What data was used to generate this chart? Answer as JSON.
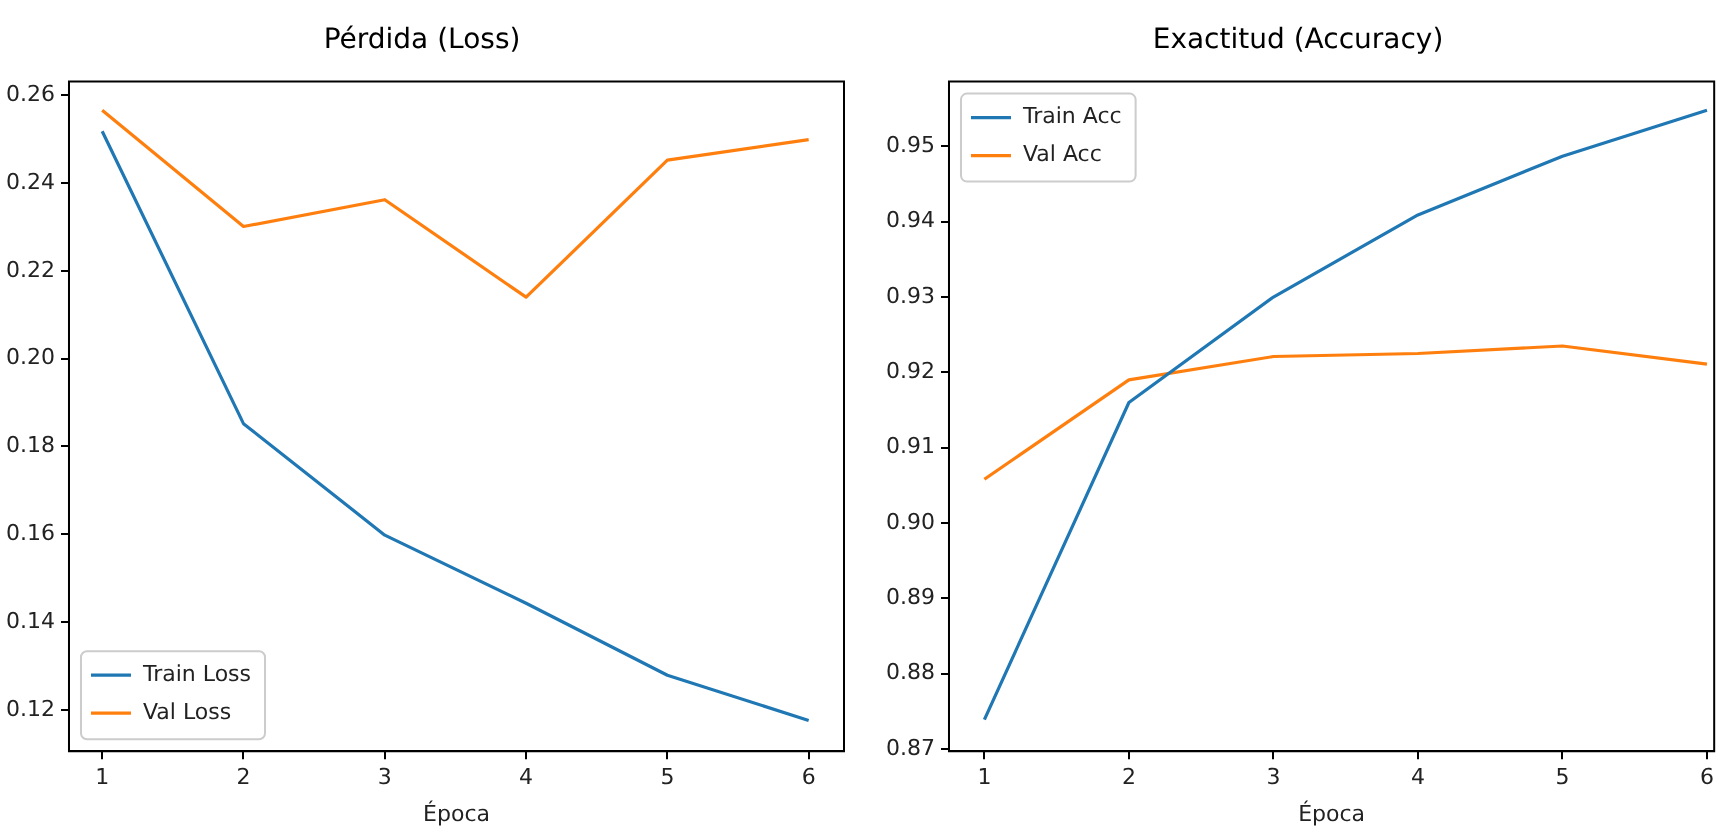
{
  "chart_data": [
    {
      "type": "line",
      "title": "Pérdida (Loss)",
      "xlabel": "Época",
      "x": [
        1,
        2,
        3,
        4,
        5,
        6
      ],
      "xlim": [
        0.765,
        6.25
      ],
      "xticks": [
        1,
        2,
        3,
        4,
        5,
        6
      ],
      "ylim": [
        0.1106,
        0.2631
      ],
      "yticks": [
        0.12,
        0.14,
        0.16,
        0.18,
        {
          "value": 0.2,
          "label": "0.20"
        },
        0.22,
        0.24,
        0.26
      ],
      "grid": false,
      "legend": "bottom left",
      "series": [
        {
          "name": "Train Loss",
          "color": "#1f77b4",
          "values": [
            0.2518,
            0.1852,
            0.1598,
            0.1443,
            0.1279,
            0.1176
          ]
        },
        {
          "name": "Val Loss",
          "color": "#ff7f0e",
          "values": [
            0.2566,
            0.2301,
            0.2362,
            0.214,
            0.2452,
            0.2499
          ]
        }
      ]
    },
    {
      "type": "line",
      "title": "Exactitud (Accuracy)",
      "xlabel": "Época",
      "x": [
        1,
        2,
        3,
        4,
        5,
        6
      ],
      "xlim": [
        0.755,
        6.05
      ],
      "xticks": [
        1,
        2,
        3,
        4,
        5,
        6
      ],
      "ylim": [
        0.8697,
        0.9586
      ],
      "yticks": [
        0.87,
        0.88,
        0.89,
        {
          "value": 0.9,
          "label": "0.90"
        },
        0.91,
        0.92,
        0.93,
        0.94,
        0.95
      ],
      "grid": false,
      "legend": "top left",
      "series": [
        {
          "name": "Train Acc",
          "color": "#1f77b4",
          "values": [
            0.8739,
            0.916,
            0.93,
            0.9409,
            0.9487,
            0.9548
          ]
        },
        {
          "name": "Val Acc",
          "color": "#ff7f0e",
          "values": [
            0.9058,
            0.919,
            0.9221,
            0.9225,
            0.9235,
            0.9211
          ]
        }
      ]
    }
  ]
}
